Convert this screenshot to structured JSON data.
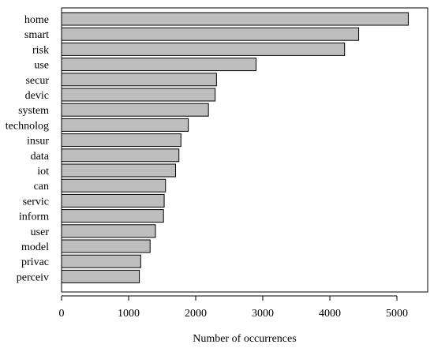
{
  "chart_data": {
    "type": "bar",
    "orientation": "horizontal",
    "categories": [
      "home",
      "smart",
      "risk",
      "use",
      "secur",
      "devic",
      "system",
      "technolog",
      "insur",
      "data",
      "iot",
      "can",
      "servic",
      "inform",
      "user",
      "model",
      "privac",
      "perceiv"
    ],
    "values": [
      5170,
      4430,
      4220,
      2900,
      2310,
      2290,
      2190,
      1890,
      1780,
      1750,
      1700,
      1550,
      1530,
      1520,
      1400,
      1320,
      1180,
      1160
    ],
    "xlabel": "Number of occurrences",
    "ylabel": "",
    "xlim": [
      0,
      5400
    ],
    "xticks": [
      0,
      1000,
      2000,
      3000,
      4000,
      5000
    ],
    "bar_color": "#bebebe",
    "grid": false
  }
}
